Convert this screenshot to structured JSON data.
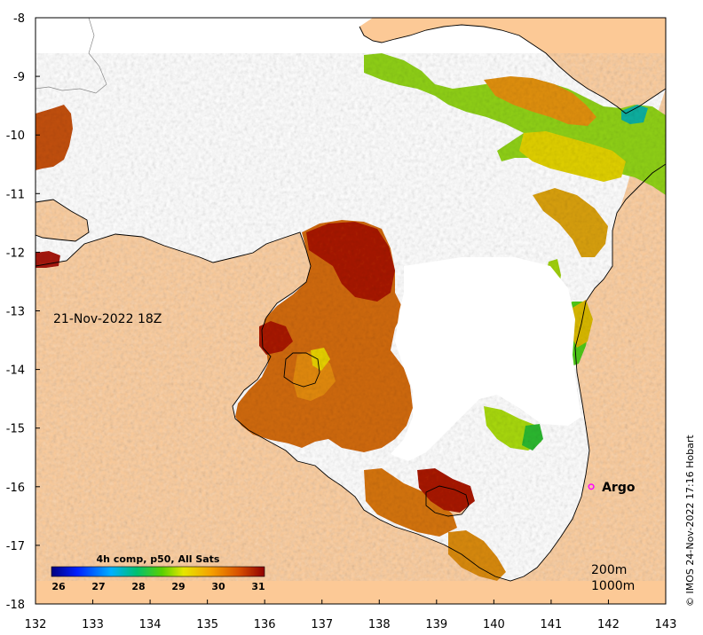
{
  "map": {
    "date_label": "21-Nov-2022 18Z",
    "copyright": "© IMOS 24-Nov-2022 17:16 Hobart",
    "lon_ticks": [
      "132",
      "133",
      "134",
      "135",
      "136",
      "137",
      "138",
      "139",
      "140",
      "141",
      "142",
      "143"
    ],
    "lat_ticks": [
      "-8",
      "-9",
      "-10",
      "-11",
      "-12",
      "-13",
      "-14",
      "-15",
      "-16",
      "-17",
      "-18"
    ],
    "extent": {
      "lon_min": 132,
      "lon_max": 143,
      "lat_min": -18,
      "lat_max": -8
    },
    "argo": {
      "label": "Argo",
      "lon": 141.7,
      "lat": -16.0,
      "color": "#ff00ff"
    },
    "contours": [
      "200m",
      "1000m"
    ],
    "colorbar": {
      "title": "4h comp, p50, All Sats",
      "ticks": [
        "26",
        "27",
        "28",
        "29",
        "30",
        "31"
      ],
      "min": 26,
      "max": 31
    },
    "colors": {
      "land": "#fcc996",
      "ocean_nodata": "#ffffff",
      "coastline": "#000000"
    }
  }
}
